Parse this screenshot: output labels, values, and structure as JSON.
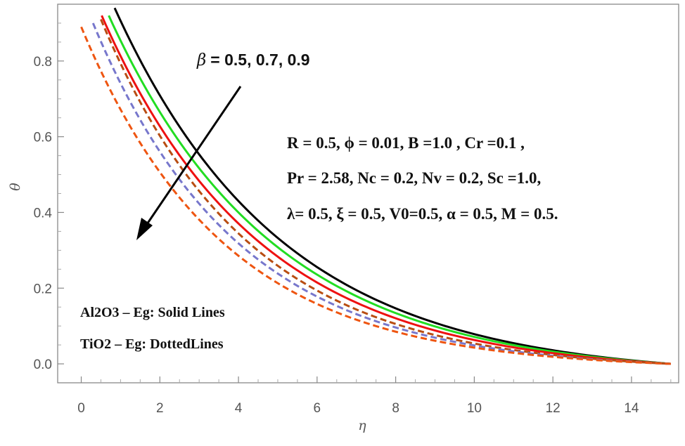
{
  "chart_data": {
    "type": "line",
    "xlabel": "η",
    "ylabel": "θ",
    "xlim": [
      -0.6,
      15.2
    ],
    "ylim": [
      -0.05,
      0.95
    ],
    "xticks": [
      0,
      2,
      4,
      6,
      8,
      10,
      12,
      14
    ],
    "xtick_labels": [
      "0",
      "2",
      "4",
      "6",
      "8",
      "10",
      "12",
      "14"
    ],
    "yticks": [
      0.0,
      0.2,
      0.4,
      0.6,
      0.8
    ],
    "ytick_labels": [
      "0.0",
      "0.2",
      "0.4",
      "0.6",
      "0.8"
    ],
    "x_end": 15,
    "series": [
      {
        "name": "Al2O3 – Eg, β = 0.5",
        "color": "#000000",
        "style": "solid",
        "x_start": 0.85,
        "y_start": 0.94,
        "decay": 0.235
      },
      {
        "name": "Al2O3 – Eg, β = 0.7",
        "color": "#22dd22",
        "style": "solid",
        "x_start": 0.7,
        "y_start": 0.92,
        "decay": 0.24
      },
      {
        "name": "Al2O3 – Eg, β = 0.9",
        "color": "#ee1111",
        "style": "solid",
        "x_start": 0.52,
        "y_start": 0.92,
        "decay": 0.25
      },
      {
        "name": "TiO2 – Eg, β = 0.5",
        "color": "#b84d12",
        "style": "dashed",
        "x_start": 0.5,
        "y_start": 0.91,
        "decay": 0.268
      },
      {
        "name": "TiO2 – Eg, β = 0.7",
        "color": "#7777cc",
        "style": "dashed",
        "x_start": 0.3,
        "y_start": 0.9,
        "decay": 0.272
      },
      {
        "name": "TiO2 – Eg, β = 0.9",
        "color": "#ee5511",
        "style": "dashed",
        "x_start": 0.0,
        "y_start": 0.89,
        "decay": 0.276
      }
    ],
    "annotations": {
      "beta_symbol": "β",
      "beta_values": "= 0.5, 0.7, 0.9",
      "params_line1": "R = 0.5, ϕ = 0.01, B =1.0 , Cr =0.1 ,",
      "params_line2": "Pr = 2.58, Nc = 0.2, Nv = 0.2, Sc =1.0,",
      "params_line3": "λ= 0.5, ξ = 0.5,  V0=0.5, α = 0.5, M = 0.5.",
      "legend_line1": "Al2O3 – Eg: Solid Lines",
      "legend_line2": "TiO2 – Eg: DottedLines"
    }
  }
}
